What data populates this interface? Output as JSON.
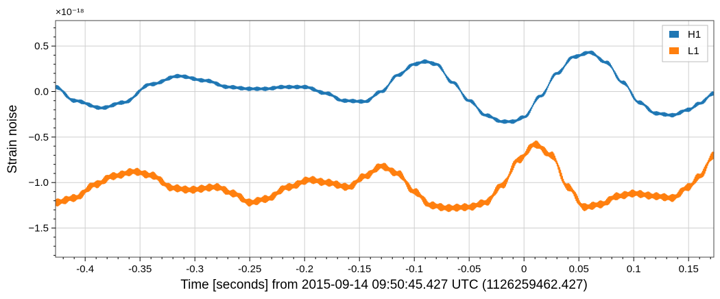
{
  "chart_data": {
    "type": "line",
    "xlabel": "Time [seconds] from 2015-09-14 09:50:45.427 UTC (1126259462.427)",
    "ylabel": "Strain noise",
    "y_scale_label": "×10⁻¹⁸",
    "xlim": [
      -0.427,
      0.173
    ],
    "ylim": [
      -1.82,
      0.78
    ],
    "x_ticks": [
      -0.4,
      -0.35,
      -0.3,
      -0.25,
      -0.2,
      -0.15,
      -0.1,
      -0.05,
      0,
      0.05,
      0.1,
      0.15
    ],
    "x_tick_labels": [
      "-0.4",
      "-0.35",
      "-0.3",
      "-0.25",
      "-0.2",
      "-0.15",
      "-0.1",
      "-0.05",
      "0",
      "0.05",
      "0.1",
      "0.15"
    ],
    "y_ticks": [
      -1.5,
      -1.0,
      -0.5,
      0.0,
      0.5
    ],
    "y_tick_labels": [
      "−1.5",
      "−1.0",
      "−0.5",
      "0.0",
      "0.5"
    ],
    "grid": true,
    "legend_position": "top-right",
    "series": [
      {
        "name": "H1",
        "color": "#1f77b4",
        "noise_amplitude": 0.02,
        "x": [
          -0.427,
          -0.41,
          -0.385,
          -0.365,
          -0.34,
          -0.315,
          -0.29,
          -0.27,
          -0.25,
          -0.235,
          -0.22,
          -0.2,
          -0.18,
          -0.165,
          -0.145,
          -0.13,
          -0.115,
          -0.1,
          -0.09,
          -0.08,
          -0.065,
          -0.05,
          -0.035,
          -0.02,
          -0.01,
          0.0,
          0.015,
          0.03,
          0.045,
          0.06,
          0.075,
          0.09,
          0.105,
          0.12,
          0.135,
          0.15,
          0.16,
          0.173
        ],
        "values": [
          0.05,
          -0.1,
          -0.18,
          -0.12,
          0.08,
          0.17,
          0.12,
          0.05,
          0.03,
          0.03,
          0.05,
          0.05,
          -0.02,
          -0.1,
          -0.11,
          0.0,
          0.18,
          0.3,
          0.33,
          0.3,
          0.1,
          -0.1,
          -0.26,
          -0.33,
          -0.33,
          -0.28,
          -0.05,
          0.2,
          0.38,
          0.43,
          0.32,
          0.1,
          -0.12,
          -0.24,
          -0.26,
          -0.2,
          -0.13,
          -0.02
        ]
      },
      {
        "name": "L1",
        "color": "#ff7f0e",
        "noise_amplitude": 0.04,
        "x": [
          -0.427,
          -0.41,
          -0.39,
          -0.375,
          -0.355,
          -0.34,
          -0.32,
          -0.305,
          -0.28,
          -0.265,
          -0.25,
          -0.235,
          -0.215,
          -0.195,
          -0.18,
          -0.16,
          -0.145,
          -0.13,
          -0.115,
          -0.1,
          -0.085,
          -0.07,
          -0.05,
          -0.035,
          -0.02,
          -0.005,
          0.01,
          0.025,
          0.04,
          0.055,
          0.07,
          0.085,
          0.1,
          0.12,
          0.135,
          0.15,
          0.16,
          0.173
        ],
        "values": [
          -1.22,
          -1.17,
          -1.02,
          -0.93,
          -0.88,
          -0.92,
          -1.06,
          -1.08,
          -1.05,
          -1.12,
          -1.22,
          -1.18,
          -1.05,
          -0.97,
          -1.0,
          -1.05,
          -0.93,
          -0.82,
          -0.9,
          -1.1,
          -1.25,
          -1.28,
          -1.27,
          -1.22,
          -1.03,
          -0.75,
          -0.58,
          -0.7,
          -1.05,
          -1.27,
          -1.24,
          -1.15,
          -1.12,
          -1.15,
          -1.17,
          -1.05,
          -0.93,
          -0.7
        ]
      }
    ]
  }
}
